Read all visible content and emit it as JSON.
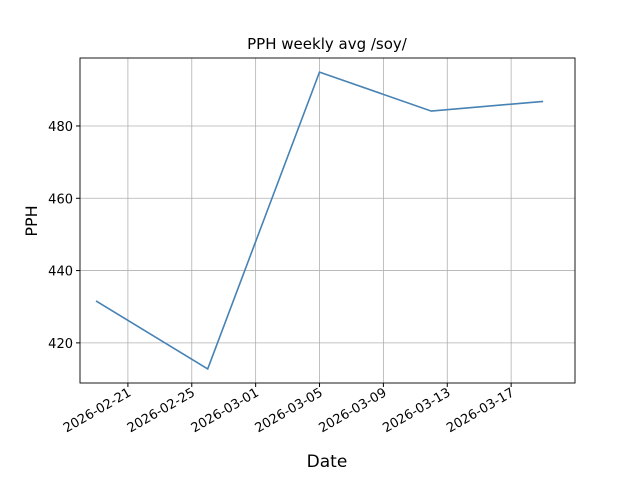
{
  "chart_data": {
    "type": "line",
    "title": "PPH weekly avg /soy/",
    "x_label": "Date",
    "y_label": "PPH",
    "x": [
      "2026-02-19",
      "2026-02-26",
      "2026-03-05",
      "2026-03-12",
      "2026-03-19"
    ],
    "series": [
      {
        "name": "PPH",
        "color": "#4682b4",
        "values": [
          431.6,
          412.8,
          494.9,
          484.1,
          486.8
        ]
      }
    ],
    "xlim": [
      "2026-02-18",
      "2026-03-21"
    ],
    "xticks": [
      "2026-02-21",
      "2026-02-25",
      "2026-03-01",
      "2026-03-05",
      "2026-03-09",
      "2026-03-13",
      "2026-03-17"
    ],
    "ylim": [
      408.9,
      498.8
    ],
    "yticks": [
      420,
      440,
      460,
      480
    ],
    "grid": true
  }
}
